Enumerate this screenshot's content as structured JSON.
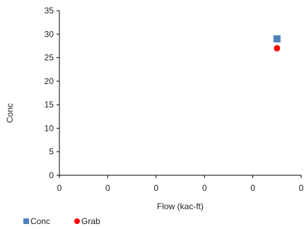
{
  "chart_data": {
    "type": "scatter",
    "title": "",
    "xlabel": "Flow (kac-ft)",
    "ylabel": "Conc",
    "ylim": [
      0,
      35
    ],
    "yticks": [
      "0",
      "5",
      "10",
      "15",
      "20",
      "25",
      "30",
      "35"
    ],
    "xticks": [
      "0",
      "0",
      "0",
      "0",
      "0",
      "0"
    ],
    "grid": false,
    "legend_position": "bottom-left",
    "series": [
      {
        "name": "Conc",
        "marker": "square",
        "color": "#4f81bd",
        "points": [
          {
            "x": 0.9,
            "y": 29
          }
        ]
      },
      {
        "name": "Grab",
        "marker": "circle",
        "color": "#ff0000",
        "points": [
          {
            "x": 0.9,
            "y": 27
          }
        ]
      }
    ]
  }
}
